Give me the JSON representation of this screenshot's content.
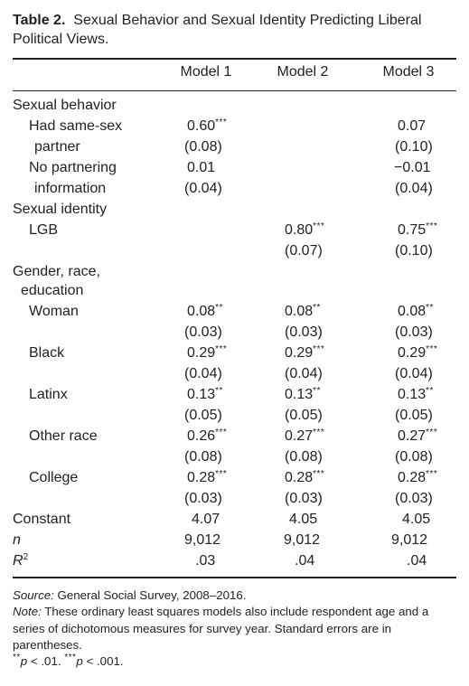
{
  "caption": {
    "label": "Table 2.",
    "text": "Sexual Behavior and Sexual Identity Predicting Liberal Political Views."
  },
  "columns": [
    "Model 1",
    "Model 2",
    "Model 3"
  ],
  "sections": {
    "behavior": "Sexual behavior",
    "identity": "Sexual identity",
    "demo_line1": "Gender, race,",
    "demo_line2": "education"
  },
  "rows": {
    "same_sex": {
      "label1": "Had same-sex",
      "label2": "partner",
      "m1": "0.60",
      "m1_sig": "***",
      "m3": "0.07",
      "m1_se": "(0.08)",
      "m3_se": "(0.10)"
    },
    "no_partner": {
      "label1": "No partnering",
      "label2": "information",
      "m1": "0.01",
      "m3": "−0.01",
      "m1_se": "(0.04)",
      "m3_se": "(0.04)"
    },
    "lgb": {
      "label": "LGB",
      "m2": "0.80",
      "m2_sig": "***",
      "m3": "0.75",
      "m3_sig": "***",
      "m2_se": "(0.07)",
      "m3_se": "(0.10)"
    },
    "woman": {
      "label": "Woman",
      "m1": "0.08",
      "m1_sig": "**",
      "m2": "0.08",
      "m2_sig": "**",
      "m3": "0.08",
      "m3_sig": "**",
      "m1_se": "(0.03)",
      "m2_se": "(0.03)",
      "m3_se": "(0.03)"
    },
    "black": {
      "label": "Black",
      "m1": "0.29",
      "m1_sig": "***",
      "m2": "0.29",
      "m2_sig": "***",
      "m3": "0.29",
      "m3_sig": "***",
      "m1_se": "(0.04)",
      "m2_se": "(0.04)",
      "m3_se": "(0.04)"
    },
    "latinx": {
      "label": "Latinx",
      "m1": "0.13",
      "m1_sig": "**",
      "m2": "0.13",
      "m2_sig": "**",
      "m3": "0.13",
      "m3_sig": "**",
      "m1_se": "(0.05)",
      "m2_se": "(0.05)",
      "m3_se": "(0.05)"
    },
    "other_race": {
      "label": "Other race",
      "m1": "0.26",
      "m1_sig": "***",
      "m2": "0.27",
      "m2_sig": "***",
      "m3": "0.27",
      "m3_sig": "***",
      "m1_se": "(0.08)",
      "m2_se": "(0.08)",
      "m3_se": "(0.08)"
    },
    "college": {
      "label": "College",
      "m1": "0.28",
      "m1_sig": "***",
      "m2": "0.28",
      "m2_sig": "***",
      "m3": "0.28",
      "m3_sig": "***",
      "m1_se": "(0.03)",
      "m2_se": "(0.03)",
      "m3_se": "(0.03)"
    },
    "constant": {
      "label": "Constant",
      "m1": "4.07",
      "m2": "4.05",
      "m3": "4.05"
    },
    "n": {
      "label": "n",
      "m1": "9,012",
      "m2": "9,012",
      "m3": "9,012"
    },
    "r2": {
      "label": "R",
      "label_sup": "2",
      "m1": ".03",
      "m2": ".04",
      "m3": ".04"
    }
  },
  "notes": {
    "source_label": "Source:",
    "source_text": " General Social Survey, 2008–2016.",
    "note_label": "Note:",
    "note_text": " These ordinary least squares models also include respondent age and a series of dichotomous measures for survey year. Standard errors are in parentheses.",
    "sig1_stars": "**",
    "sig1_p": "p",
    "sig1_text": " < .01. ",
    "sig2_stars": "***",
    "sig2_p": "p",
    "sig2_text": " < .001."
  }
}
